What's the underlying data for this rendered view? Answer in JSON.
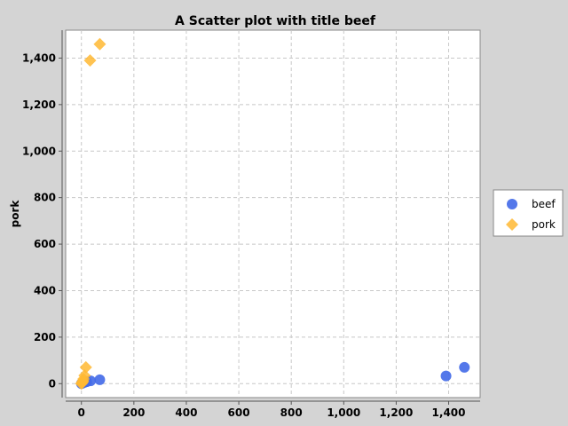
{
  "chart_data": {
    "type": "scatter",
    "title": "A Scatter plot with title beef",
    "xlabel": "",
    "ylabel": "pork",
    "xlim": [
      -60,
      1520
    ],
    "ylim": [
      -60,
      1520
    ],
    "xticks": [
      0,
      200,
      400,
      600,
      800,
      1000,
      1200,
      1400
    ],
    "xtick_labels": [
      "0",
      "200",
      "400",
      "600",
      "800",
      "1,000",
      "1,200",
      "1,400"
    ],
    "yticks": [
      0,
      200,
      400,
      600,
      800,
      1000,
      1200,
      1400
    ],
    "ytick_labels": [
      "0",
      "200",
      "400",
      "600",
      "800",
      "1,000",
      "1,200",
      "1,400"
    ],
    "grid": true,
    "legend_position": "right",
    "series": [
      {
        "name": "beef",
        "marker": "circle",
        "color": "#4169e8",
        "points": [
          {
            "x": 0,
            "y": 0
          },
          {
            "x": 3,
            "y": 2
          },
          {
            "x": 5,
            "y": 3
          },
          {
            "x": 8,
            "y": 5
          },
          {
            "x": 12,
            "y": 6
          },
          {
            "x": 20,
            "y": 8
          },
          {
            "x": 35,
            "y": 12
          },
          {
            "x": 70,
            "y": 17
          },
          {
            "x": 1390,
            "y": 33
          },
          {
            "x": 1460,
            "y": 70
          }
        ]
      },
      {
        "name": "pork",
        "marker": "diamond",
        "color": "#ffb833",
        "points": [
          {
            "x": 0,
            "y": 0
          },
          {
            "x": 2,
            "y": 3
          },
          {
            "x": 3,
            "y": 5
          },
          {
            "x": 5,
            "y": 8
          },
          {
            "x": 6,
            "y": 12
          },
          {
            "x": 8,
            "y": 20
          },
          {
            "x": 12,
            "y": 35
          },
          {
            "x": 17,
            "y": 70
          },
          {
            "x": 33,
            "y": 1390
          },
          {
            "x": 70,
            "y": 1460
          }
        ]
      }
    ]
  }
}
